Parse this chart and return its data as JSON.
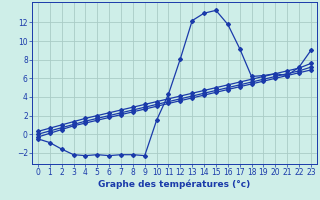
{
  "xlabel": "Graphe des températures (°c)",
  "bg_color": "#ceeee8",
  "line_color": "#1a3aaa",
  "grid_color": "#aaccc6",
  "xlim": [
    -0.5,
    23.5
  ],
  "ylim": [
    -3.2,
    14.2
  ],
  "xticks": [
    0,
    1,
    2,
    3,
    4,
    5,
    6,
    7,
    8,
    9,
    10,
    11,
    12,
    13,
    14,
    15,
    16,
    17,
    18,
    19,
    20,
    21,
    22,
    23
  ],
  "yticks": [
    -2,
    0,
    2,
    4,
    6,
    8,
    10,
    12
  ],
  "series1_x": [
    0,
    1,
    2,
    3,
    4,
    5,
    6,
    7,
    8,
    9,
    10,
    11,
    12,
    13,
    14,
    15,
    16,
    17,
    18,
    19,
    20,
    21,
    22,
    23
  ],
  "series1_y": [
    -0.5,
    -0.9,
    -1.6,
    -2.2,
    -2.3,
    -2.2,
    -2.3,
    -2.2,
    -2.2,
    -2.3,
    1.5,
    4.3,
    8.1,
    12.2,
    13.0,
    13.3,
    11.8,
    9.2,
    6.2,
    6.3,
    6.5,
    6.3,
    7.2,
    9.0
  ],
  "series2_x": [
    0,
    1,
    2,
    3,
    4,
    5,
    6,
    7,
    8,
    9,
    10,
    11,
    12,
    13,
    14,
    15,
    16,
    17,
    18,
    19,
    20,
    21,
    22,
    23
  ],
  "series2_y": [
    -0.3,
    0.1,
    0.5,
    0.9,
    1.2,
    1.5,
    1.8,
    2.1,
    2.4,
    2.7,
    3.0,
    3.3,
    3.6,
    3.9,
    4.2,
    4.5,
    4.8,
    5.1,
    5.4,
    5.7,
    6.0,
    6.3,
    6.6,
    6.9
  ],
  "series3_x": [
    0,
    1,
    2,
    3,
    4,
    5,
    6,
    7,
    8,
    9,
    10,
    11,
    12,
    13,
    14,
    15,
    16,
    17,
    18,
    19,
    20,
    21,
    22,
    23
  ],
  "series3_y": [
    0.0,
    0.35,
    0.7,
    1.05,
    1.4,
    1.7,
    2.0,
    2.3,
    2.6,
    2.9,
    3.2,
    3.5,
    3.8,
    4.1,
    4.4,
    4.7,
    5.0,
    5.3,
    5.6,
    5.9,
    6.2,
    6.5,
    6.8,
    7.2
  ],
  "series4_x": [
    0,
    1,
    2,
    3,
    4,
    5,
    6,
    7,
    8,
    9,
    10,
    11,
    12,
    13,
    14,
    15,
    16,
    17,
    18,
    19,
    20,
    21,
    22,
    23
  ],
  "series4_y": [
    0.3,
    0.65,
    1.0,
    1.35,
    1.7,
    2.0,
    2.3,
    2.6,
    2.9,
    3.2,
    3.5,
    3.8,
    4.1,
    4.4,
    4.7,
    5.0,
    5.3,
    5.6,
    5.9,
    6.2,
    6.5,
    6.8,
    7.1,
    7.6
  ]
}
